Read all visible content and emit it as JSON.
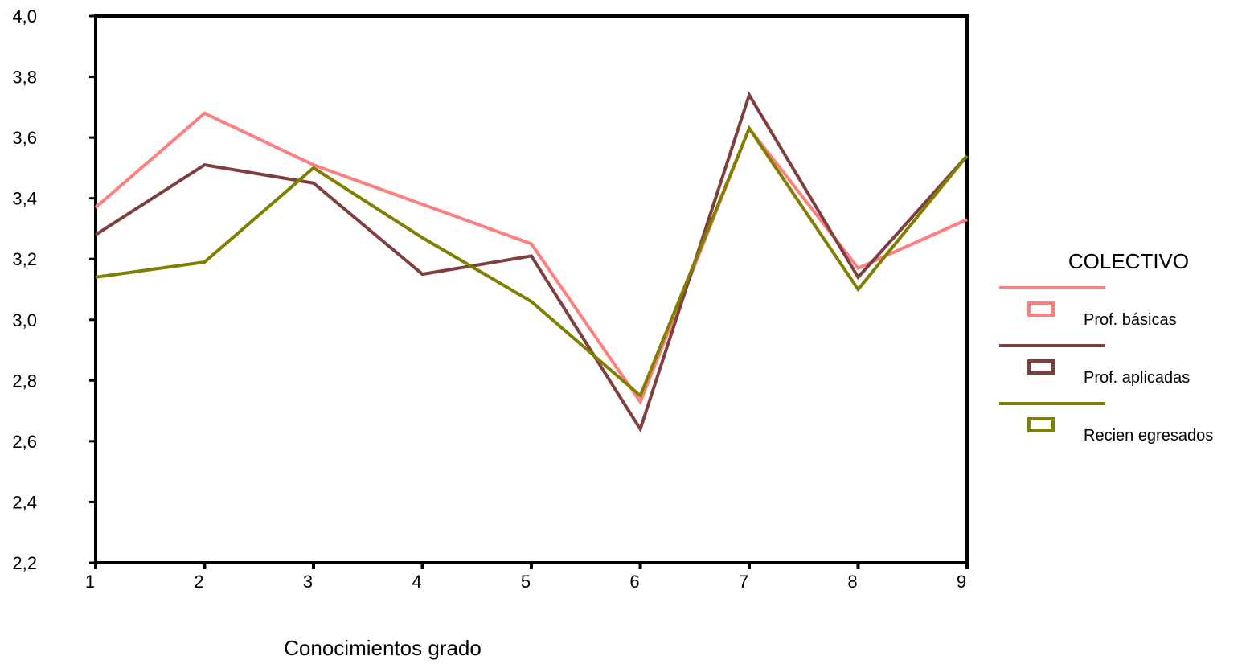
{
  "chart_data": {
    "type": "line",
    "categories": [
      "1",
      "2",
      "3",
      "4",
      "5",
      "6",
      "7",
      "8",
      "9"
    ],
    "ylim": [
      2.2,
      4.0
    ],
    "yticks": [
      "2,2",
      "2,4",
      "2,6",
      "2,8",
      "3,0",
      "3,2",
      "3,4",
      "3,6",
      "3,8",
      "4,0"
    ],
    "xlabel": "Conocimientos grado",
    "legend_title": "COLECTIVO",
    "legend_position": "right",
    "grid": false,
    "series": [
      {
        "name": "Prof. básicas",
        "color": "#FF7F7F",
        "values": [
          3.37,
          3.68,
          3.51,
          3.38,
          3.25,
          2.73,
          3.63,
          3.17,
          3.33
        ]
      },
      {
        "name": "Prof. aplicadas",
        "color": "#7F3F3F",
        "values": [
          3.28,
          3.51,
          3.45,
          3.15,
          3.21,
          2.64,
          3.74,
          3.14,
          3.54
        ]
      },
      {
        "name": "Recien egresados",
        "color": "#7F7F00",
        "values": [
          3.14,
          3.19,
          3.5,
          3.27,
          3.06,
          2.75,
          3.63,
          3.1,
          3.54
        ]
      }
    ]
  }
}
